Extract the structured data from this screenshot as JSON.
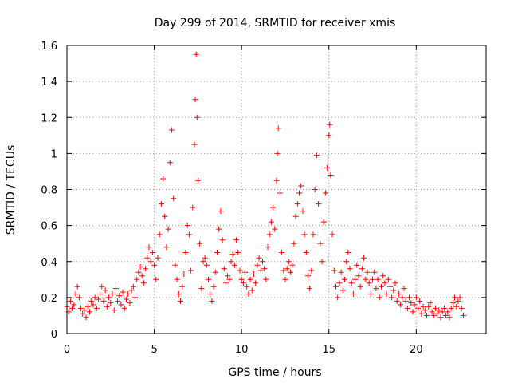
{
  "chart_data": {
    "type": "scatter",
    "title": "Day 299 of 2014, SRMTID for receiver xmis",
    "xlabel": "GPS time / hours",
    "ylabel": "SRMTID / TECUs",
    "xlim": [
      0,
      24
    ],
    "ylim": [
      0,
      1.6
    ],
    "xticks": [
      0,
      5,
      10,
      15,
      20
    ],
    "xtick_labels": [
      "0",
      "5",
      "10",
      "15",
      "20"
    ],
    "yticks": [
      0,
      0.2,
      0.4,
      0.6,
      0.8,
      1.0,
      1.2,
      1.4,
      1.6
    ],
    "ytick_labels": [
      "0",
      "0.2",
      "0.4",
      "0.6",
      "0.8",
      "1",
      "1.2",
      "1.4",
      "1.6"
    ],
    "grid": true,
    "marker": "+",
    "color": "#ff0000",
    "series": [
      {
        "name": "SRMTID",
        "points": [
          [
            0.0,
            0.15
          ],
          [
            0.1,
            0.12
          ],
          [
            0.2,
            0.18
          ],
          [
            0.3,
            0.14
          ],
          [
            0.4,
            0.16
          ],
          [
            0.5,
            0.22
          ],
          [
            0.6,
            0.26
          ],
          [
            0.7,
            0.2
          ],
          [
            0.8,
            0.14
          ],
          [
            0.9,
            0.11
          ],
          [
            1.0,
            0.13
          ],
          [
            1.1,
            0.09
          ],
          [
            1.2,
            0.15
          ],
          [
            1.3,
            0.12
          ],
          [
            1.4,
            0.18
          ],
          [
            1.5,
            0.16
          ],
          [
            1.6,
            0.2
          ],
          [
            1.7,
            0.14
          ],
          [
            1.8,
            0.19
          ],
          [
            1.9,
            0.22
          ],
          [
            2.0,
            0.26
          ],
          [
            2.1,
            0.18
          ],
          [
            2.2,
            0.24
          ],
          [
            2.3,
            0.15
          ],
          [
            2.4,
            0.2
          ],
          [
            2.5,
            0.17
          ],
          [
            2.6,
            0.22
          ],
          [
            2.7,
            0.13
          ],
          [
            2.8,
            0.25
          ],
          [
            2.9,
            0.18
          ],
          [
            3.0,
            0.21
          ],
          [
            3.1,
            0.16
          ],
          [
            3.2,
            0.23
          ],
          [
            3.3,
            0.14
          ],
          [
            3.4,
            0.19
          ],
          [
            3.5,
            0.22
          ],
          [
            3.6,
            0.17
          ],
          [
            3.7,
            0.24
          ],
          [
            3.8,
            0.26
          ],
          [
            3.9,
            0.2
          ],
          [
            4.0,
            0.3
          ],
          [
            4.1,
            0.34
          ],
          [
            4.2,
            0.37
          ],
          [
            4.3,
            0.32
          ],
          [
            4.4,
            0.28
          ],
          [
            4.5,
            0.36
          ],
          [
            4.6,
            0.42
          ],
          [
            4.7,
            0.48
          ],
          [
            4.8,
            0.4
          ],
          [
            4.9,
            0.45
          ],
          [
            5.0,
            0.38
          ],
          [
            5.1,
            0.3
          ],
          [
            5.2,
            0.42
          ],
          [
            5.3,
            0.55
          ],
          [
            5.4,
            0.72
          ],
          [
            5.5,
            0.86
          ],
          [
            5.6,
            0.65
          ],
          [
            5.7,
            0.48
          ],
          [
            5.8,
            0.58
          ],
          [
            5.9,
            0.95
          ],
          [
            6.0,
            1.13
          ],
          [
            6.1,
            0.75
          ],
          [
            6.2,
            0.38
          ],
          [
            6.3,
            0.3
          ],
          [
            6.4,
            0.22
          ],
          [
            6.5,
            0.18
          ],
          [
            6.6,
            0.26
          ],
          [
            6.7,
            0.33
          ],
          [
            6.8,
            0.45
          ],
          [
            6.9,
            0.6
          ],
          [
            7.0,
            0.55
          ],
          [
            7.1,
            0.35
          ],
          [
            7.2,
            0.7
          ],
          [
            7.3,
            1.05
          ],
          [
            7.35,
            1.3
          ],
          [
            7.4,
            1.55
          ],
          [
            7.45,
            1.2
          ],
          [
            7.5,
            0.85
          ],
          [
            7.6,
            0.5
          ],
          [
            7.7,
            0.25
          ],
          [
            7.8,
            0.4
          ],
          [
            7.9,
            0.42
          ],
          [
            8.0,
            0.38
          ],
          [
            8.1,
            0.3
          ],
          [
            8.2,
            0.22
          ],
          [
            8.3,
            0.18
          ],
          [
            8.4,
            0.26
          ],
          [
            8.5,
            0.34
          ],
          [
            8.6,
            0.45
          ],
          [
            8.7,
            0.58
          ],
          [
            8.8,
            0.68
          ],
          [
            8.9,
            0.52
          ],
          [
            9.0,
            0.36
          ],
          [
            9.1,
            0.28
          ],
          [
            9.2,
            0.32
          ],
          [
            9.3,
            0.3
          ],
          [
            9.4,
            0.4
          ],
          [
            9.5,
            0.44
          ],
          [
            9.6,
            0.38
          ],
          [
            9.7,
            0.52
          ],
          [
            9.8,
            0.45
          ],
          [
            9.9,
            0.35
          ],
          [
            10.0,
            0.3
          ],
          [
            10.1,
            0.28
          ],
          [
            10.2,
            0.34
          ],
          [
            10.3,
            0.26
          ],
          [
            10.4,
            0.22
          ],
          [
            10.5,
            0.3
          ],
          [
            10.6,
            0.24
          ],
          [
            10.7,
            0.33
          ],
          [
            10.8,
            0.28
          ],
          [
            10.9,
            0.38
          ],
          [
            11.0,
            0.42
          ],
          [
            11.1,
            0.35
          ],
          [
            11.2,
            0.4
          ],
          [
            11.3,
            0.36
          ],
          [
            11.4,
            0.3
          ],
          [
            11.5,
            0.48
          ],
          [
            11.6,
            0.55
          ],
          [
            11.7,
            0.62
          ],
          [
            11.8,
            0.7
          ],
          [
            11.9,
            0.58
          ],
          [
            12.0,
            0.85
          ],
          [
            12.05,
            1.0
          ],
          [
            12.1,
            1.14
          ],
          [
            12.2,
            0.78
          ],
          [
            12.3,
            0.45
          ],
          [
            12.4,
            0.35
          ],
          [
            12.5,
            0.3
          ],
          [
            12.6,
            0.36
          ],
          [
            12.7,
            0.4
          ],
          [
            12.8,
            0.34
          ],
          [
            12.9,
            0.38
          ],
          [
            13.0,
            0.5
          ],
          [
            13.1,
            0.65
          ],
          [
            13.2,
            0.72
          ],
          [
            13.3,
            0.78
          ],
          [
            13.4,
            0.82
          ],
          [
            13.5,
            0.68
          ],
          [
            13.6,
            0.55
          ],
          [
            13.7,
            0.45
          ],
          [
            13.8,
            0.32
          ],
          [
            13.9,
            0.25
          ],
          [
            14.0,
            0.35
          ],
          [
            14.1,
            0.55
          ],
          [
            14.2,
            0.8
          ],
          [
            14.3,
            0.99
          ],
          [
            14.4,
            0.72
          ],
          [
            14.5,
            0.5
          ],
          [
            14.6,
            0.4
          ],
          [
            14.7,
            0.62
          ],
          [
            14.8,
            0.78
          ],
          [
            14.9,
            0.92
          ],
          [
            15.0,
            1.1
          ],
          [
            15.05,
            1.16
          ],
          [
            15.1,
            0.88
          ],
          [
            15.2,
            0.55
          ],
          [
            15.3,
            0.35
          ],
          [
            15.4,
            0.26
          ],
          [
            15.5,
            0.2
          ],
          [
            15.6,
            0.28
          ],
          [
            15.7,
            0.34
          ],
          [
            15.8,
            0.24
          ],
          [
            15.9,
            0.3
          ],
          [
            16.0,
            0.4
          ],
          [
            16.1,
            0.45
          ],
          [
            16.2,
            0.36
          ],
          [
            16.3,
            0.28
          ],
          [
            16.4,
            0.22
          ],
          [
            16.5,
            0.3
          ],
          [
            16.6,
            0.38
          ],
          [
            16.7,
            0.32
          ],
          [
            16.8,
            0.26
          ],
          [
            16.9,
            0.36
          ],
          [
            17.0,
            0.42
          ],
          [
            17.1,
            0.3
          ],
          [
            17.2,
            0.34
          ],
          [
            17.3,
            0.28
          ],
          [
            17.4,
            0.22
          ],
          [
            17.5,
            0.3
          ],
          [
            17.6,
            0.34
          ],
          [
            17.7,
            0.25
          ],
          [
            17.8,
            0.3
          ],
          [
            17.9,
            0.2
          ],
          [
            18.0,
            0.26
          ],
          [
            18.1,
            0.32
          ],
          [
            18.2,
            0.28
          ],
          [
            18.3,
            0.22
          ],
          [
            18.4,
            0.3
          ],
          [
            18.5,
            0.26
          ],
          [
            18.6,
            0.2
          ],
          [
            18.7,
            0.24
          ],
          [
            18.8,
            0.28
          ],
          [
            18.9,
            0.18
          ],
          [
            19.0,
            0.22
          ],
          [
            19.1,
            0.16
          ],
          [
            19.2,
            0.2
          ],
          [
            19.3,
            0.25
          ],
          [
            19.4,
            0.18
          ],
          [
            19.5,
            0.14
          ],
          [
            19.6,
            0.2
          ],
          [
            19.7,
            0.17
          ],
          [
            19.8,
            0.12
          ],
          [
            19.9,
            0.16
          ],
          [
            20.0,
            0.2
          ],
          [
            20.1,
            0.14
          ],
          [
            20.2,
            0.18
          ],
          [
            20.3,
            0.11
          ],
          [
            20.4,
            0.15
          ],
          [
            20.5,
            0.13
          ],
          [
            20.6,
            0.1
          ],
          [
            20.7,
            0.15
          ],
          [
            20.8,
            0.17
          ],
          [
            20.9,
            0.12
          ],
          [
            21.0,
            0.1
          ],
          [
            21.1,
            0.14
          ],
          [
            21.2,
            0.11
          ],
          [
            21.3,
            0.13
          ],
          [
            21.4,
            0.09
          ],
          [
            21.5,
            0.12
          ],
          [
            21.6,
            0.14
          ],
          [
            21.7,
            0.1
          ],
          [
            21.8,
            0.12
          ],
          [
            21.9,
            0.09
          ],
          [
            22.0,
            0.14
          ],
          [
            22.1,
            0.17
          ],
          [
            22.2,
            0.2
          ],
          [
            22.3,
            0.15
          ],
          [
            22.4,
            0.18
          ],
          [
            22.5,
            0.2
          ],
          [
            22.6,
            0.14
          ],
          [
            22.7,
            0.1
          ]
        ]
      }
    ]
  }
}
